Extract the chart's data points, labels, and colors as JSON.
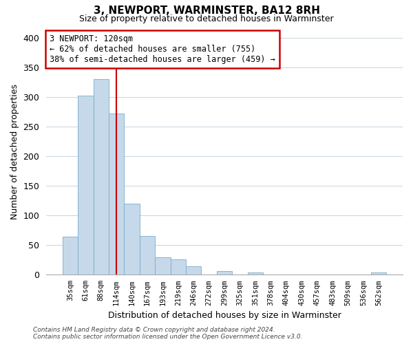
{
  "title": "3, NEWPORT, WARMINSTER, BA12 8RH",
  "subtitle": "Size of property relative to detached houses in Warminster",
  "xlabel": "Distribution of detached houses by size in Warminster",
  "ylabel": "Number of detached properties",
  "bar_color": "#c6d9ea",
  "bar_edge_color": "#7aaac8",
  "categories": [
    "35sqm",
    "61sqm",
    "88sqm",
    "114sqm",
    "140sqm",
    "167sqm",
    "193sqm",
    "219sqm",
    "246sqm",
    "272sqm",
    "299sqm",
    "325sqm",
    "351sqm",
    "378sqm",
    "404sqm",
    "430sqm",
    "457sqm",
    "483sqm",
    "509sqm",
    "536sqm",
    "562sqm"
  ],
  "values": [
    63,
    302,
    330,
    272,
    120,
    65,
    29,
    25,
    13,
    0,
    5,
    0,
    3,
    0,
    0,
    0,
    0,
    0,
    0,
    0,
    3
  ],
  "ylim": [
    0,
    415
  ],
  "yticks": [
    0,
    50,
    100,
    150,
    200,
    250,
    300,
    350,
    400
  ],
  "vline_x_index": 3,
  "vline_color": "#cc0000",
  "annotation_text": "3 NEWPORT: 120sqm\n← 62% of detached houses are smaller (755)\n38% of semi-detached houses are larger (459) →",
  "annotation_box_color": "#ffffff",
  "annotation_box_edgecolor": "#cc0000",
  "footer_line1": "Contains HM Land Registry data © Crown copyright and database right 2024.",
  "footer_line2": "Contains public sector information licensed under the Open Government Licence v3.0.",
  "background_color": "#ffffff",
  "grid_color": "#c8d4dc"
}
